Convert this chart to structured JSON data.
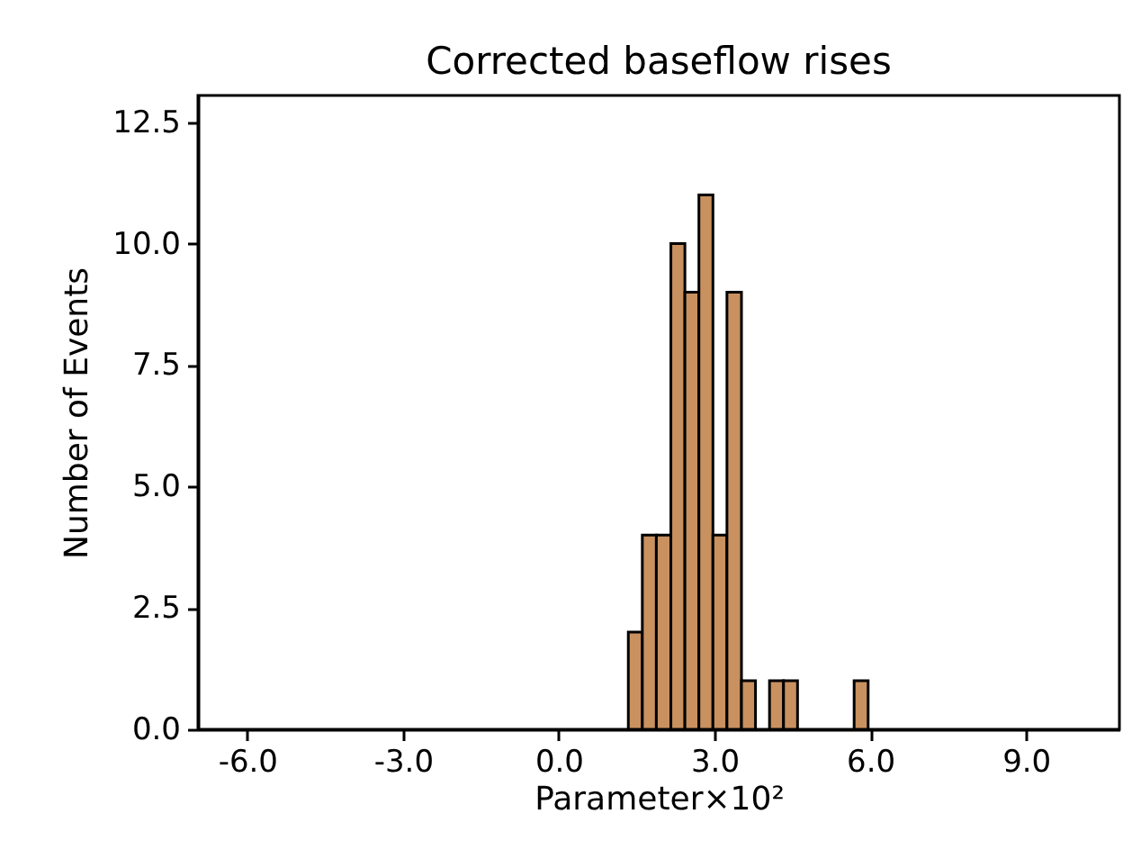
{
  "chart_data": {
    "type": "histogram",
    "title": "Corrected baseflow rises",
    "xlabel": "Parameter×10²",
    "ylabel": "Number of Events",
    "bins": [
      1.34,
      1.61,
      1.88,
      2.16,
      2.43,
      2.7,
      2.97,
      3.24,
      3.52,
      3.79,
      4.06,
      4.33,
      4.6,
      5.69,
      5.96
    ],
    "values": [
      2,
      4,
      4,
      10,
      9,
      11,
      4,
      9,
      1,
      0,
      1,
      1,
      0,
      1
    ],
    "color": "#c8915f",
    "xlim": [
      -6.95,
      10.8
    ],
    "xticks": [
      {
        "value": -6,
        "label": "-6.0"
      },
      {
        "value": -3,
        "label": "-3.0"
      },
      {
        "value": 0,
        "label": "0.0"
      },
      {
        "value": 3,
        "label": "3.0"
      },
      {
        "value": 6,
        "label": "6.0"
      },
      {
        "value": 9,
        "label": "9.0"
      }
    ],
    "ylim": [
      0,
      13.05
    ],
    "yticks": [
      {
        "value": 0,
        "label": "0.0"
      },
      {
        "value": 2.5,
        "label": "2.5"
      },
      {
        "value": 5,
        "label": "5.0"
      },
      {
        "value": 7.5,
        "label": "7.5"
      },
      {
        "value": 10,
        "label": "10.0"
      },
      {
        "value": 12.5,
        "label": "12.5"
      }
    ],
    "grid": false
  }
}
